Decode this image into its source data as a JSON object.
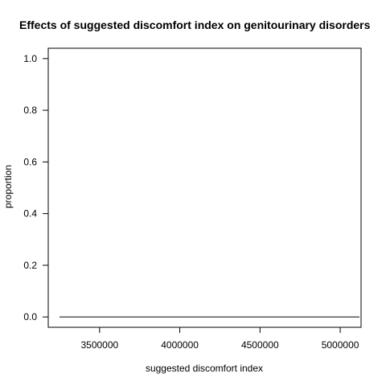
{
  "chart_data": {
    "type": "line",
    "title": "Effects of suggested discomfort index on genitourinary disorders",
    "xlabel": "suggested discomfort index",
    "ylabel": "proportion",
    "xlim": [
      3180000,
      5130000
    ],
    "ylim": [
      -0.04,
      1.04
    ],
    "x_ticks": [
      3500000,
      4000000,
      4500000,
      5000000
    ],
    "x_tick_labels": [
      "3500000",
      "4000000",
      "4500000",
      "5000000"
    ],
    "y_ticks": [
      0.0,
      0.2,
      0.4,
      0.6,
      0.8,
      1.0
    ],
    "y_tick_labels": [
      "0.0",
      "0.2",
      "0.4",
      "0.6",
      "0.8",
      "1.0"
    ],
    "grid": false,
    "series": [
      {
        "x": [
          3250000,
          5120000
        ],
        "y": [
          0.0,
          0.0
        ],
        "color": "#000000"
      }
    ]
  }
}
